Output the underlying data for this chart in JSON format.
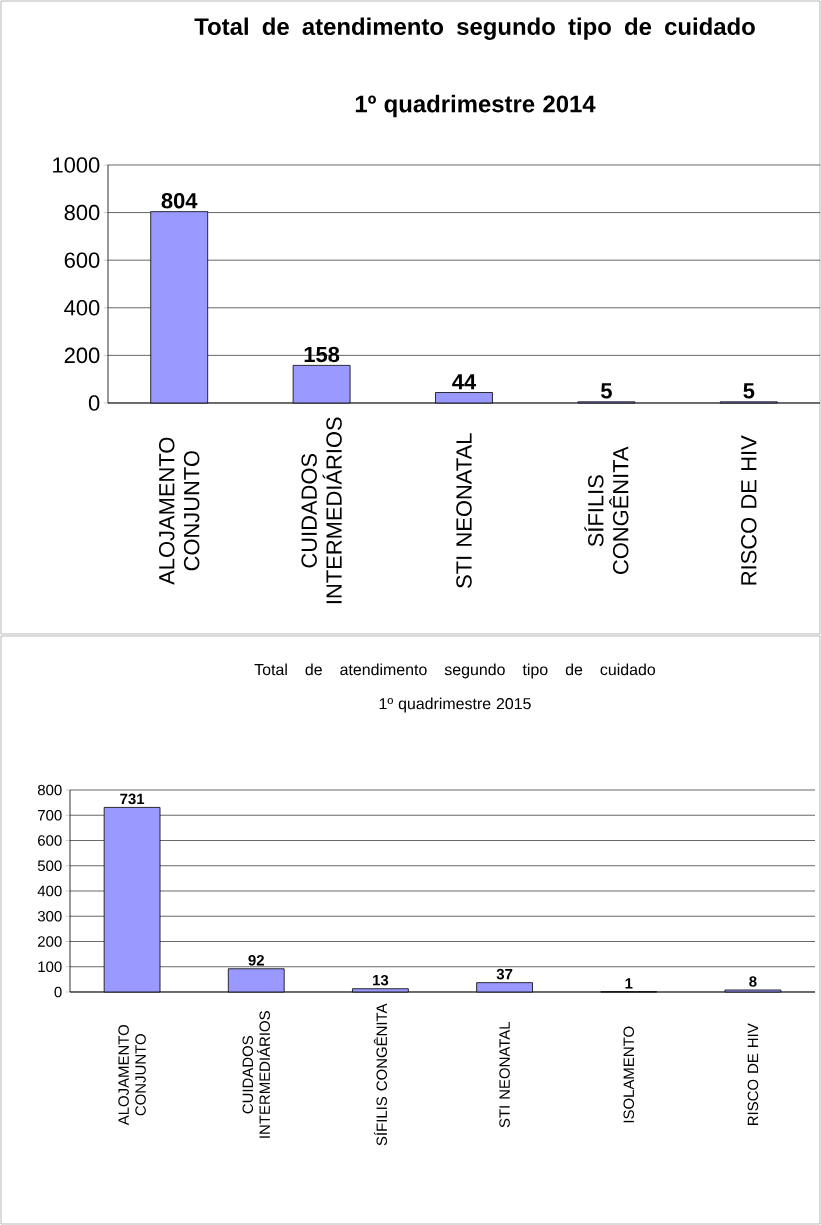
{
  "chart_data": [
    {
      "type": "bar",
      "title": "Total de atendimento segundo tipo de cuidado",
      "subtitle": "1º quadrimestre 2014",
      "categories": [
        "ALOJAMENTO CONJUNTO",
        "CUIDADOS INTERMEDIÁRIOS",
        "STI NEONATAL",
        "SÍFILIS CONGÊNITA",
        "RISCO DE HIV"
      ],
      "values": [
        804,
        158,
        44,
        5,
        5
      ],
      "color": "#9999ff",
      "ylim": [
        0,
        1000
      ],
      "yticks": [
        0,
        200,
        400,
        600,
        800,
        1000
      ],
      "grid": "y",
      "data_labels": true
    },
    {
      "type": "bar",
      "title": "Total de atendimento segundo tipo de cuidado",
      "subtitle": "1º quadrimestre 2015",
      "categories": [
        "ALOJAMENTO CONJUNTO",
        "CUIDADOS INTERMEDIÁRIOS",
        "SÍFILIS CONGÊNITA",
        "STI NEONATAL",
        "ISOLAMENTO",
        "RISCO DE HIV"
      ],
      "values": [
        731,
        92,
        13,
        37,
        1,
        8
      ],
      "color": "#9999ff",
      "ylim": [
        0,
        800
      ],
      "yticks": [
        0,
        100,
        200,
        300,
        400,
        500,
        600,
        700,
        800
      ],
      "grid": "y",
      "data_labels": true
    }
  ]
}
